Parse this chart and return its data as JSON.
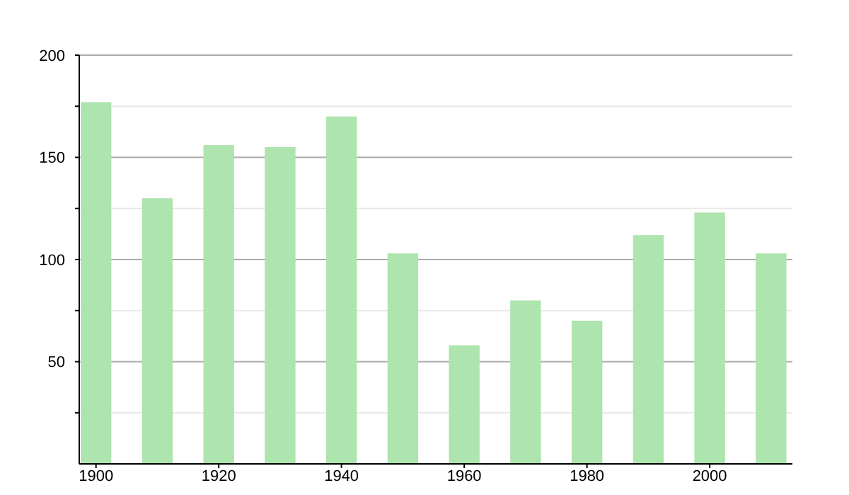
{
  "chart_data": {
    "type": "bar",
    "categories": [
      "1900",
      null,
      "1920",
      null,
      "1940",
      null,
      "1960",
      null,
      "1980",
      null,
      "2000",
      null
    ],
    "values": [
      177,
      130,
      156,
      155,
      170,
      103,
      58,
      80,
      70,
      112,
      123,
      103
    ],
    "color": "#aee4ae",
    "ylim": [
      0,
      200
    ],
    "yticks": [
      {
        "value": 25,
        "label": null
      },
      50,
      {
        "value": 75,
        "label": null
      },
      100,
      {
        "value": 125,
        "label": null
      },
      150,
      {
        "value": 175,
        "label": null
      },
      200
    ],
    "grid": true
  }
}
